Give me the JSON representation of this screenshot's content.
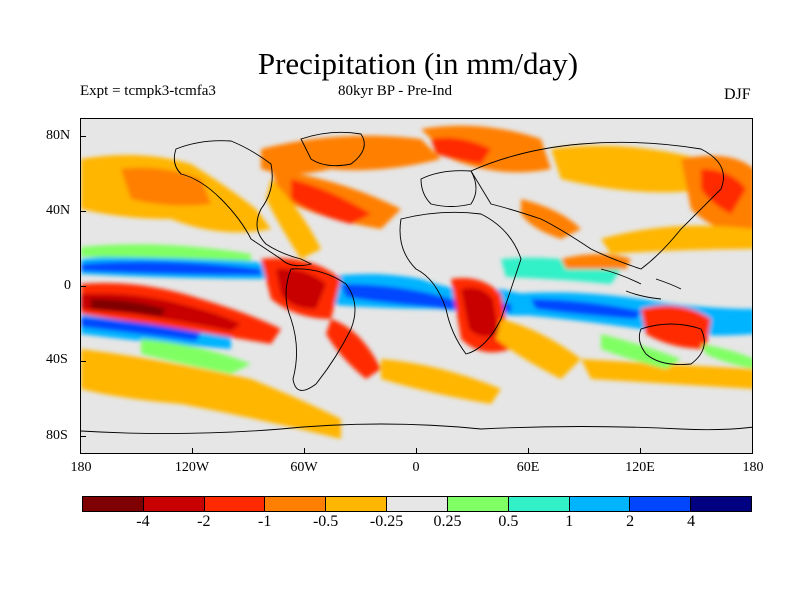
{
  "title": "Precipitation (in mm/day)",
  "subtitle_left": "Expt = tcmpk3-tcmfa3",
  "subtitle_center": "80kyr BP - Pre-Ind",
  "season": "DJF",
  "y_ticks": [
    "80N",
    "40N",
    "0",
    "40S",
    "80S"
  ],
  "x_ticks": [
    "180",
    "120W",
    "60W",
    "0",
    "60E",
    "120E",
    "180"
  ],
  "colorbar": {
    "colors": [
      "#7f0000",
      "#c80000",
      "#ff2a00",
      "#ff7f00",
      "#ffb600",
      "#e6e6e6",
      "#80ff64",
      "#32f0c8",
      "#00b4ff",
      "#0046ff",
      "#000080"
    ],
    "labels": [
      "-4",
      "-2",
      "-1",
      "-0.5",
      "-0.25",
      "0.25",
      "0.5",
      "1",
      "2",
      "4"
    ]
  },
  "map_data": {
    "lon_range": [
      -180,
      180
    ],
    "lat_range": [
      -90,
      90
    ],
    "background_color": "#e6e6e6",
    "coast_color": "#000000"
  }
}
